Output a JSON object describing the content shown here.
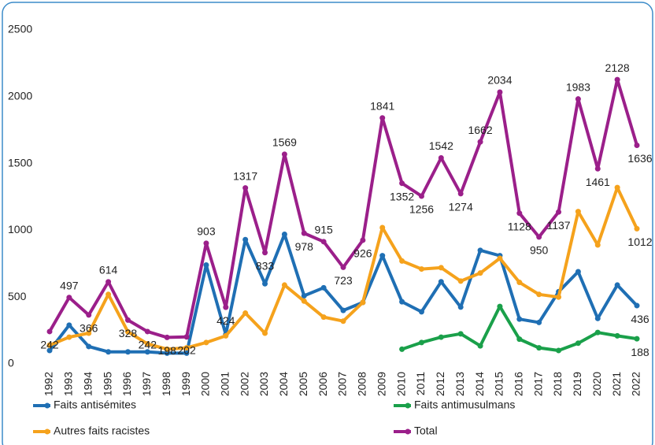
{
  "chart_data": {
    "type": "line",
    "categories": [
      "1992",
      "1993",
      "1994",
      "1995",
      "1996",
      "1997",
      "1998",
      "1999",
      "2000",
      "2001",
      "2002",
      "2003",
      "2004",
      "2005",
      "2006",
      "2007",
      "2008",
      "2009",
      "2010",
      "2011",
      "2012",
      "2013",
      "2014",
      "2015",
      "2016",
      "2017",
      "2018",
      "2019",
      "2020",
      "2021",
      "2022"
    ],
    "series": [
      {
        "name": "Faits antisémites",
        "color": "#1f6fb4",
        "labels": "last",
        "values": [
          100,
          290,
          130,
          90,
          90,
          90,
          80,
          80,
          740,
          220,
          930,
          600,
          970,
          510,
          570,
          400,
          460,
          810,
          465,
          390,
          615,
          425,
          850,
          810,
          335,
          310,
          540,
          690,
          340,
          590,
          436
        ]
      },
      {
        "name": "Autres faits racistes",
        "color": "#f5a21c",
        "labels": "last",
        "values": [
          140,
          200,
          230,
          520,
          240,
          150,
          110,
          120,
          160,
          210,
          380,
          230,
          590,
          470,
          350,
          320,
          460,
          1020,
          770,
          710,
          720,
          620,
          680,
          790,
          610,
          520,
          500,
          1140,
          890,
          1320,
          1012
        ]
      },
      {
        "name": "Faits antimusulmans",
        "color": "#1aa04a",
        "labels": "last",
        "values": [
          null,
          null,
          null,
          null,
          null,
          null,
          null,
          null,
          null,
          null,
          null,
          null,
          null,
          null,
          null,
          null,
          null,
          null,
          110,
          160,
          200,
          225,
          135,
          430,
          185,
          120,
          100,
          155,
          235,
          210,
          188
        ]
      },
      {
        "name": "Total",
        "color": "#9b1f8a",
        "labels": "all",
        "values": [
          242,
          497,
          366,
          614,
          328,
          242,
          198,
          202,
          903,
          424,
          1317,
          833,
          1569,
          978,
          915,
          723,
          926,
          1841,
          1352,
          1256,
          1542,
          1274,
          1662,
          2034,
          1128,
          950,
          1137,
          1983,
          1461,
          2128,
          1636
        ]
      }
    ],
    "ylim": [
      0,
      2500
    ],
    "yticks": [
      0,
      500,
      1000,
      1500,
      2000,
      2500
    ],
    "grid": false
  }
}
